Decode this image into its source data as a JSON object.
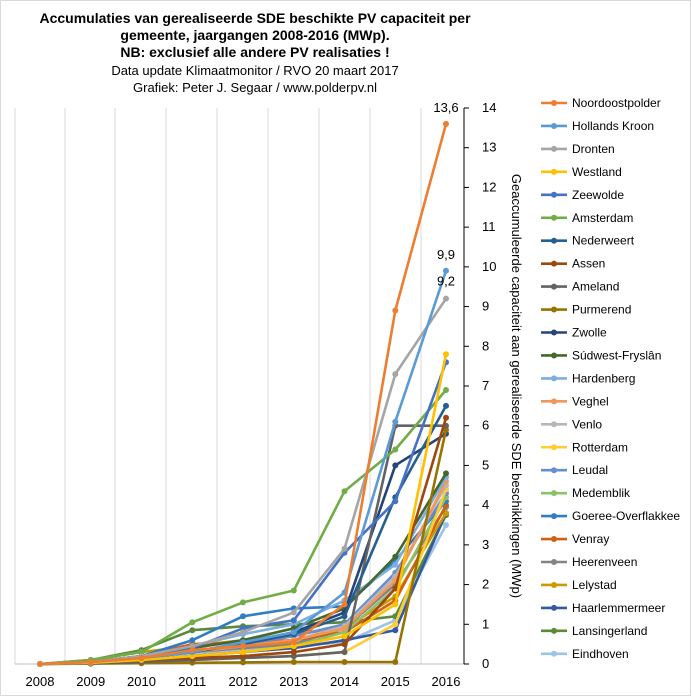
{
  "chart_data": {
    "type": "line",
    "title_lines": [
      "Accumulaties van gerealiseerde SDE beschikte PV capaciteit per",
      "gemeente, jaargangen 2008-2016 (MWp).",
      "NB: exclusief alle andere PV realisaties !"
    ],
    "subtitle_lines": [
      "Data update Klimaatmonitor  / RVO 20 maart 2017",
      "Grafiek:  Peter J. Segaar / www.polderpv.nl"
    ],
    "ylabel": "Geaccumuleerde capaciteit aan gerealiseerde SDE beschikkingen  (MWp)",
    "x": [
      "2008",
      "2009",
      "2010",
      "2011",
      "2012",
      "2013",
      "2014",
      "2015",
      "2016"
    ],
    "ylim": [
      0,
      14
    ],
    "yticks": [
      "0",
      "1",
      "2",
      "3",
      "4",
      "5",
      "6",
      "7",
      "8",
      "9",
      "10",
      "11",
      "12",
      "13",
      "14"
    ],
    "grid": "vertical",
    "legend_position": "right",
    "annotations": [
      "13,6",
      "9,9",
      "9,2"
    ],
    "series": [
      {
        "name": "Noordoostpolder",
        "color": "#ED7D31",
        "values": [
          0,
          0.05,
          0.15,
          0.35,
          0.45,
          0.55,
          1.5,
          8.9,
          13.6
        ]
      },
      {
        "name": "Hollands Kroon",
        "color": "#5B9BD5",
        "values": [
          0,
          0.05,
          0.15,
          0.3,
          0.55,
          0.8,
          1.8,
          6.1,
          9.9
        ]
      },
      {
        "name": "Dronten",
        "color": "#A5A5A5",
        "values": [
          0,
          0.05,
          0.2,
          0.45,
          0.8,
          1.3,
          2.9,
          7.3,
          9.2
        ]
      },
      {
        "name": "Westland",
        "color": "#FFC000",
        "values": [
          0,
          0.03,
          0.1,
          0.2,
          0.3,
          0.45,
          0.7,
          1.5,
          7.8
        ]
      },
      {
        "name": "Zeewolde",
        "color": "#4472C4",
        "values": [
          0,
          0.05,
          0.2,
          0.4,
          0.9,
          1.1,
          2.8,
          4.1,
          7.6
        ]
      },
      {
        "name": "Amsterdam",
        "color": "#70AD47",
        "values": [
          0,
          0.1,
          0.3,
          1.05,
          1.55,
          1.85,
          4.35,
          5.4,
          6.9
        ]
      },
      {
        "name": "Nederweert",
        "color": "#255E91",
        "values": [
          0,
          0.05,
          0.15,
          0.3,
          0.5,
          0.75,
          1.2,
          4.2,
          6.5
        ]
      },
      {
        "name": "Assen",
        "color": "#9E480E",
        "values": [
          0,
          0.03,
          0.1,
          0.15,
          0.2,
          0.3,
          0.5,
          1.9,
          6.2
        ]
      },
      {
        "name": "Ameland",
        "color": "#636363",
        "values": [
          0,
          0.01,
          0.05,
          0.1,
          0.15,
          0.2,
          0.3,
          6.0,
          6.0
        ]
      },
      {
        "name": "Purmerend",
        "color": "#997300",
        "values": [
          0,
          0.01,
          0.02,
          0.03,
          0.04,
          0.05,
          0.05,
          0.05,
          5.9
        ]
      },
      {
        "name": "Zwolle",
        "color": "#264478",
        "values": [
          0,
          0.05,
          0.15,
          0.3,
          0.5,
          0.8,
          1.3,
          5.0,
          5.8
        ]
      },
      {
        "name": "Súdwest-Fryslân",
        "color": "#43682B",
        "values": [
          0,
          0.05,
          0.2,
          0.4,
          0.6,
          0.9,
          1.4,
          2.7,
          4.8
        ]
      },
      {
        "name": "Hardenberg",
        "color": "#7CAFDD",
        "values": [
          0,
          0.05,
          0.2,
          0.45,
          0.75,
          1.0,
          1.6,
          2.5,
          4.7
        ]
      },
      {
        "name": "Veghel",
        "color": "#F1975A",
        "values": [
          0,
          0.05,
          0.15,
          0.3,
          0.45,
          0.6,
          0.9,
          2.1,
          4.6
        ]
      },
      {
        "name": "Venlo",
        "color": "#B7B7B7",
        "values": [
          0,
          0.05,
          0.15,
          0.3,
          0.45,
          0.6,
          0.95,
          2.2,
          4.5
        ]
      },
      {
        "name": "Rotterdam",
        "color": "#FFCD33",
        "values": [
          0,
          0.02,
          0.05,
          0.1,
          0.15,
          0.2,
          0.3,
          1.0,
          4.4
        ]
      },
      {
        "name": "Leudal",
        "color": "#698ED0",
        "values": [
          0,
          0.05,
          0.15,
          0.3,
          0.5,
          0.7,
          1.0,
          2.3,
          4.3
        ]
      },
      {
        "name": "Medemblik",
        "color": "#8CC168",
        "values": [
          0,
          0.05,
          0.1,
          0.2,
          0.3,
          0.45,
          0.8,
          1.9,
          4.2
        ]
      },
      {
        "name": "Goeree-Overflakkee",
        "color": "#327DC2",
        "values": [
          0,
          0.05,
          0.2,
          0.6,
          1.2,
          1.4,
          1.45,
          2.6,
          4.1
        ]
      },
      {
        "name": "Venray",
        "color": "#D26012",
        "values": [
          0,
          0.05,
          0.2,
          0.5,
          0.55,
          0.6,
          0.8,
          1.6,
          4.0
        ]
      },
      {
        "name": "Heerenveen",
        "color": "#848484",
        "values": [
          0,
          0.05,
          0.15,
          0.3,
          0.4,
          0.5,
          0.9,
          2.0,
          3.95
        ]
      },
      {
        "name": "Lelystad",
        "color": "#CC9A00",
        "values": [
          0,
          0.1,
          0.3,
          0.45,
          0.6,
          0.75,
          0.9,
          1.7,
          3.8
        ]
      },
      {
        "name": "Haarlemmermeer",
        "color": "#335AA1",
        "values": [
          0,
          0.05,
          0.1,
          0.2,
          0.3,
          0.4,
          0.6,
          0.85,
          3.8
        ]
      },
      {
        "name": "Lansingerland",
        "color": "#5A8A39",
        "values": [
          0,
          0.1,
          0.35,
          0.85,
          0.95,
          1.0,
          1.05,
          1.2,
          3.75
        ]
      },
      {
        "name": "Eindhoven",
        "color": "#9DC3E6",
        "values": [
          0,
          0.05,
          0.15,
          0.25,
          0.35,
          0.45,
          0.55,
          1.1,
          3.5
        ]
      }
    ]
  }
}
